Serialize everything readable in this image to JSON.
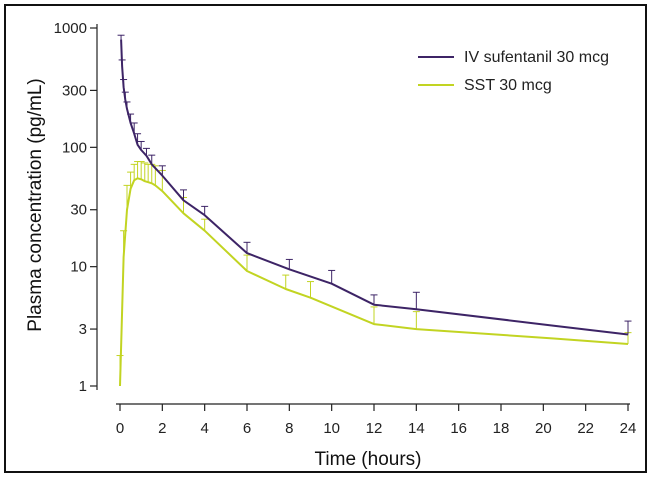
{
  "chart_data": {
    "type": "line",
    "xlabel": "Time (hours)",
    "ylabel": "Plasma concentration (pg/mL)",
    "y_scale": "log",
    "xlim": [
      0,
      24
    ],
    "ylim": [
      1,
      1000
    ],
    "x_ticks": [
      "0",
      "2",
      "4",
      "6",
      "8",
      "10",
      "12",
      "14",
      "16",
      "18",
      "20",
      "22",
      "24"
    ],
    "y_ticks": [
      "1",
      "3",
      "10",
      "30",
      "100",
      "300",
      "1000"
    ],
    "y_tick_values": [
      1,
      3,
      10,
      30,
      100,
      300,
      1000
    ],
    "grid": false,
    "legend_position": "top-right",
    "series": [
      {
        "name": "IV sufentanil 30 mcg",
        "color": "#3d2466",
        "x": [
          0.05,
          0.1,
          0.17,
          0.25,
          0.33,
          0.5,
          0.67,
          0.83,
          1,
          1.25,
          1.5,
          2,
          3,
          4,
          6,
          8,
          10,
          12,
          14,
          20.5,
          24
        ],
        "y": [
          800,
          480,
          320,
          250,
          210,
          160,
          130,
          105,
          95,
          85,
          72,
          58,
          36,
          27,
          13,
          9.5,
          7.2,
          4.8,
          4.4,
          3.2,
          2.7
        ],
        "error_upper": [
          870,
          540,
          370,
          290,
          240,
          190,
          160,
          130,
          112,
          98,
          86,
          70,
          44,
          32,
          16,
          11.5,
          9.3,
          5.8,
          6.1,
          null,
          3.5
        ]
      },
      {
        "name": "SST 30 mcg",
        "color": "#c2d422",
        "x": [
          0,
          0.08,
          0.17,
          0.33,
          0.5,
          0.67,
          0.83,
          1,
          1.17,
          1.33,
          1.5,
          1.67,
          2,
          3,
          4,
          6,
          7.83,
          9,
          12,
          14,
          20.5,
          24
        ],
        "y": [
          1,
          3.2,
          12,
          30,
          45,
          53,
          55,
          54,
          52,
          51,
          50,
          48,
          43,
          28,
          20,
          9.2,
          6.5,
          5.5,
          3.3,
          3.0,
          2.5,
          2.25
        ],
        "error_upper": [
          1.8,
          null,
          20,
          48,
          62,
          72,
          76,
          76,
          74,
          72,
          72,
          70,
          64,
          38,
          25,
          12.5,
          8.5,
          7.5,
          4.6,
          4.2,
          null,
          2.8
        ]
      }
    ]
  }
}
